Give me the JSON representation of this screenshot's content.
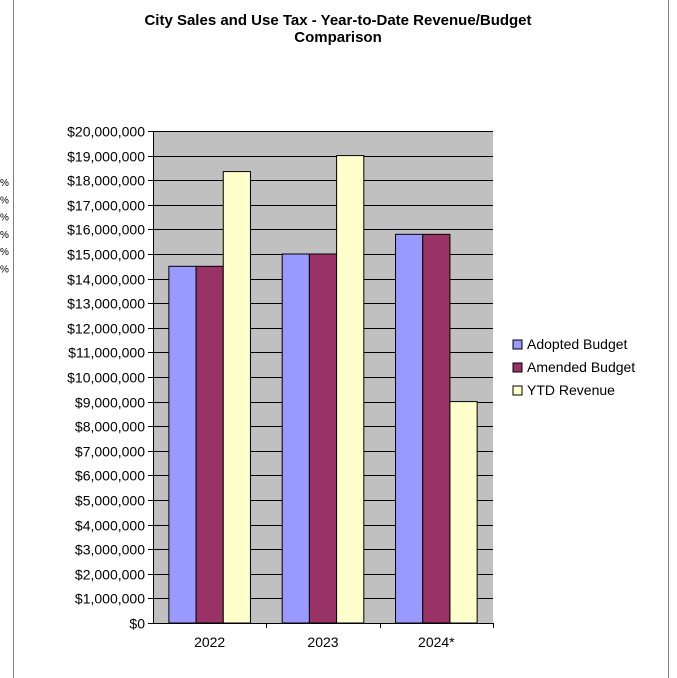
{
  "chart_data": {
    "type": "bar",
    "title": "City Sales and Use Tax - Year-to-Date Revenue/Budget Comparison",
    "title_lines": [
      "City Sales and Use Tax - Year-to-Date Revenue/Budget",
      "Comparison"
    ],
    "categories": [
      "2022",
      "2023",
      "2024*"
    ],
    "series": [
      {
        "name": "Adopted Budget",
        "color": "#9999FF",
        "values": [
          14500000,
          15000000,
          15800000
        ]
      },
      {
        "name": "Amended Budget",
        "color": "#993366",
        "values": [
          14500000,
          15000000,
          15800000
        ]
      },
      {
        "name": "YTD Revenue",
        "color": "#FFFFCC",
        "values": [
          18350000,
          19000000,
          9000000
        ]
      }
    ],
    "xlabel": "",
    "ylabel": "",
    "ylim": [
      0,
      20000000
    ],
    "ytick_step": 1000000,
    "yticks": [
      "$0",
      "$1,000,000",
      "$2,000,000",
      "$3,000,000",
      "$4,000,000",
      "$5,000,000",
      "$6,000,000",
      "$7,000,000",
      "$8,000,000",
      "$9,000,000",
      "$10,000,000",
      "$11,000,000",
      "$12,000,000",
      "$13,000,000",
      "$14,000,000",
      "$15,000,000",
      "$16,000,000",
      "$17,000,000",
      "$18,000,000",
      "$19,000,000",
      "$20,000,000"
    ],
    "plot_background": "#C0C0C0",
    "grid": true,
    "legend_position": "right"
  },
  "edge_fragments": [
    "%",
    "%",
    "%",
    "%",
    "%",
    "%"
  ]
}
